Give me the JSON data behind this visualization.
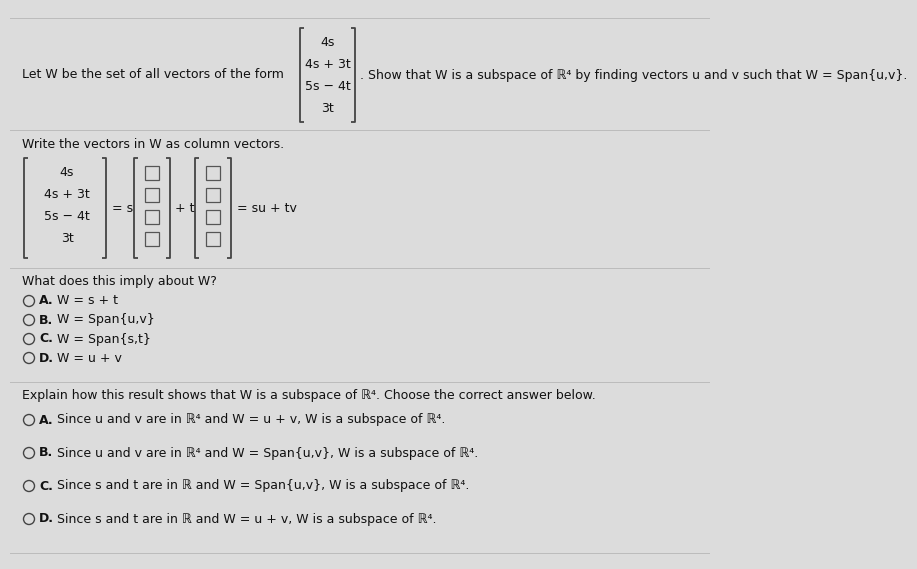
{
  "bg_color": "#dcdcdc",
  "title_line": "Let W be the set of all vectors of the form",
  "vector_form": [
    "4s",
    "4s + 3t",
    "5s − 4t",
    "3t"
  ],
  "show_text": ". Show that W is a subspace of ℝ⁴ by finding vectors u and v such that W = Span{u,v}.",
  "section1_label": "Write the vectors in W as column vectors.",
  "vector_label_entries": [
    "4s",
    "4s + 3t",
    "5s − 4t",
    "3t"
  ],
  "eq_s": "= s",
  "eq_t": "+ t",
  "eq_suv": "= su + tv",
  "what_implies": "What does this imply about W?",
  "choices_q1": [
    "W = s + t",
    "W = Span{u,v}",
    "W = Span{s,t}",
    "W = u + v"
  ],
  "choices_q1_letters": [
    "A.",
    "B.",
    "C.",
    "D."
  ],
  "explain_label": "Explain how this result shows that W is a subspace of ℝ⁴. Choose the correct answer below.",
  "choices_q2_letters": [
    "A.",
    "B.",
    "C.",
    "D."
  ],
  "choices_q2_main": [
    "Since u and v are in ℝ⁴ and W = u + v, W is a subspace of ℝ⁴.",
    "Since u and v are in ℝ⁴ and W = Span{u,v}, W is a subspace of ℝ⁴.",
    "Since s and t are in ℝ and W = Span{u,v}, W is a subspace of ℝ⁴.",
    "Since s and t are in ℝ and W = u + v, W is a subspace of ℝ⁴."
  ]
}
